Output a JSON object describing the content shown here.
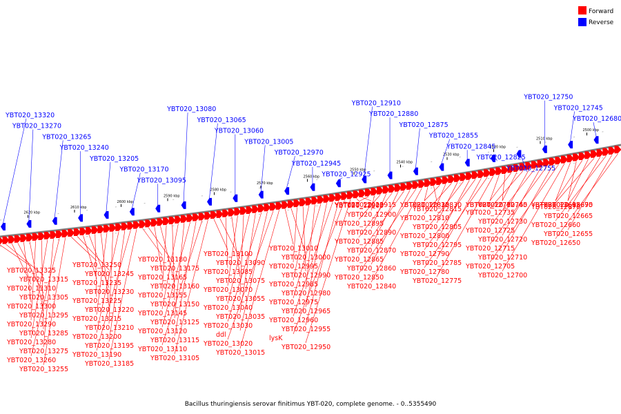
{
  "caption": "Bacillus thuringiensis serovar finitimus YBT-020, complete genome. - 0..5355490",
  "legend": [
    {
      "label": "Forward",
      "color": "#ff0000"
    },
    {
      "label": "Reverse",
      "color": "#0000ff"
    }
  ],
  "colors": {
    "forward": "#ff0000",
    "reverse": "#0000ff",
    "backbone": "#808080"
  },
  "ticks": [
    "2620 kbp",
    "2610 kbp",
    "2600 kbp",
    "2590 kbp",
    "2580 kbp",
    "2570 kbp",
    "2560 kbp",
    "2550 kbp",
    "2540 kbp",
    "2530 kbp",
    "2520 kbp",
    "2510 kbp",
    "2500 kbp"
  ],
  "reverse_genes": [
    "YBT020_13320",
    "YBT020_13270",
    "YBT020_13265",
    "YBT020_13240",
    "YBT020_13205",
    "YBT020_13170",
    "YBT020_13095",
    "YBT020_13080",
    "YBT020_13065",
    "YBT020_13060",
    "YBT020_13005",
    "YBT020_12970",
    "YBT020_12945",
    "YBT020_12925",
    "YBT020_12910",
    "YBT020_12880",
    "YBT020_12875",
    "YBT020_12855",
    "YBT020_12845",
    "YBT020_12825",
    "YBT020_12755",
    "YBT020_12750",
    "YBT020_12745",
    "YBT020_12680"
  ],
  "forward_genes": [
    "YBT020_13325",
    "YBT020_13315",
    "YBT020_13310",
    "YBT020_13305",
    "YBT020_13300",
    "YBT020_13295",
    "YBT020_13290",
    "YBT020_13285",
    "YBT020_13280",
    "YBT020_13275",
    "YBT020_13260",
    "YBT020_13255",
    "YBT020_13250",
    "YBT020_13245",
    "YBT020_13235",
    "YBT020_13230",
    "YBT020_13225",
    "YBT020_13220",
    "YBT020_13215",
    "YBT020_13210",
    "YBT020_13200",
    "YBT020_13195",
    "YBT020_13190",
    "YBT020_13185",
    "YBT020_13180",
    "YBT020_13175",
    "YBT020_13165",
    "YBT020_13160",
    "YBT020_13155",
    "YBT020_13150",
    "YBT020_13145",
    "YBT020_13125",
    "YBT020_13120",
    "YBT020_13115",
    "YBT020_13110",
    "YBT020_13105",
    "YBT020_13100",
    "YBT020_13090",
    "YBT020_13085",
    "YBT020_13075",
    "YBT020_13070",
    "YBT020_13055",
    "YBT020_13040",
    "YBT020_13035",
    "YBT020_13030",
    "ddl",
    "YBT020_13020",
    "YBT020_13015",
    "YBT020_13010",
    "YBT020_13000",
    "YBT020_12995",
    "YBT020_12990",
    "YBT020_12985",
    "YBT020_12980",
    "YBT020_12975",
    "YBT020_12965",
    "YBT020_12960",
    "YBT020_12955",
    "lysK",
    "YBT020_12950",
    "YBT020_12920",
    "YBT020_12915",
    "YBT020_12905",
    "YBT020_12900",
    "YBT020_12895",
    "YBT020_12890",
    "YBT020_12885",
    "YBT020_12870",
    "YBT020_12865",
    "YBT020_12860",
    "YBT020_12850",
    "YBT020_12840",
    "YBT020_12835",
    "YBT020_12830",
    "YBT020_12820",
    "YBT020_12815",
    "YBT020_12810",
    "YBT020_12805",
    "YBT020_12800",
    "YBT020_12795",
    "YBT020_12790",
    "YBT020_12785",
    "YBT020_12780",
    "YBT020_12775",
    "YBT020_12770",
    "YBT020_12765",
    "YBT020_12760",
    "YBT020_12740",
    "YBT020_12735",
    "YBT020_12730",
    "YBT020_12725",
    "YBT020_12720",
    "YBT020_12715",
    "YBT020_12710",
    "YBT020_12705",
    "YBT020_12700",
    "YBT020_12695",
    "YBT020_12690",
    "YBT020_12685",
    "YBT020_12675",
    "YBT020_12670",
    "YBT020_12665",
    "YBT020_12660",
    "YBT020_12655",
    "YBT020_12650"
  ]
}
